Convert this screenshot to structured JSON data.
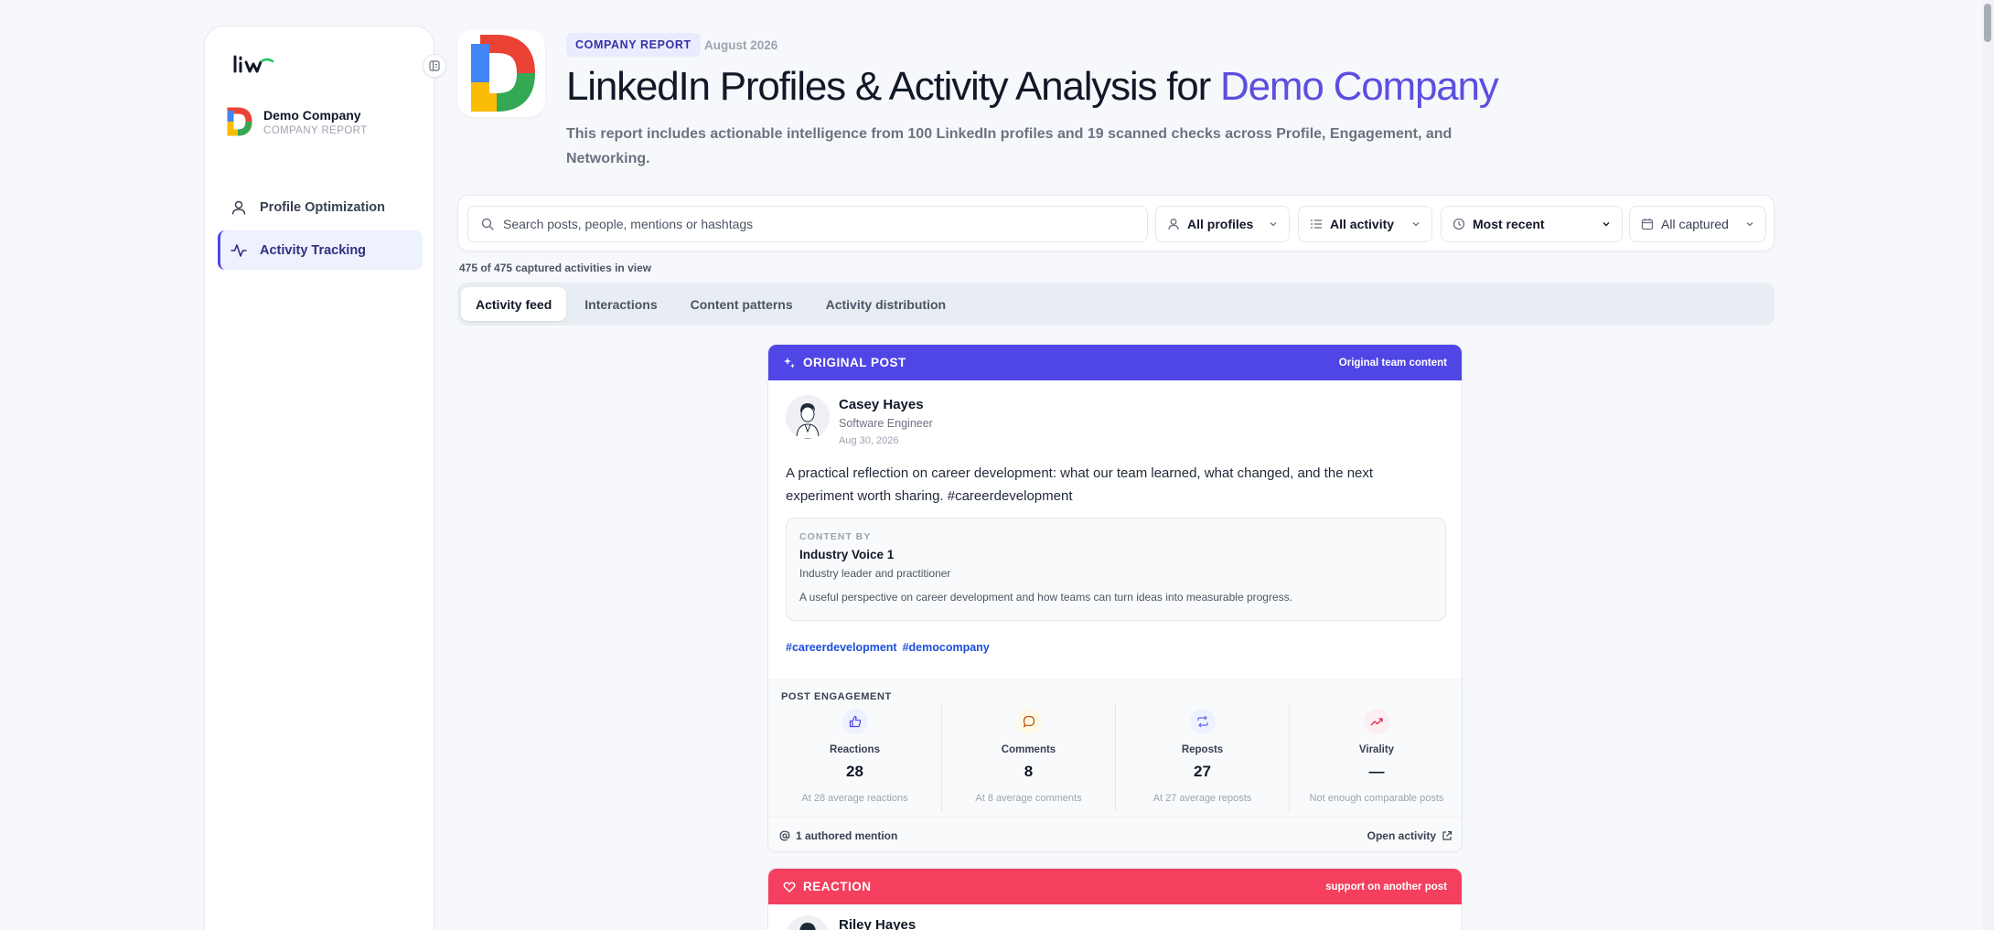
{
  "sidebar": {
    "logo": "Liw",
    "company_name": "Demo Company",
    "company_sub": "COMPANY REPORT",
    "items": [
      {
        "label": "Profile Optimization",
        "icon": "user-icon",
        "active": false
      },
      {
        "label": "Activity Tracking",
        "icon": "activity-icon",
        "active": true
      }
    ]
  },
  "header": {
    "badge": "COMPANY REPORT",
    "date": "August 2026",
    "title_main": "LinkedIn Profiles & Activity Analysis for ",
    "title_accent": "Demo Company",
    "intro": "This report includes actionable intelligence from 100 LinkedIn profiles and 19 scanned checks across Profile, Engagement, and Networking."
  },
  "filters": {
    "search_placeholder": "Search posts, people, mentions or hashtags",
    "profiles": "All profiles",
    "activity": "All activity",
    "sort": "Most recent",
    "captured": "All captured"
  },
  "count_text": "475 of 475 captured activities in view",
  "tabs": [
    {
      "label": "Activity feed",
      "active": true
    },
    {
      "label": "Interactions",
      "active": false
    },
    {
      "label": "Content patterns",
      "active": false
    },
    {
      "label": "Activity distribution",
      "active": false
    }
  ],
  "card": {
    "type": "ORIGINAL POST",
    "note": "Original team content",
    "author_name": "Casey Hayes",
    "author_role": "Software Engineer",
    "author_date": "Aug 30, 2026",
    "text": "A practical reflection on career development: what our team learned, what changed, and the next experiment worth sharing. #careerdevelopment",
    "quote": {
      "label": "CONTENT BY",
      "name": "Industry Voice 1",
      "role": "Industry leader and practitioner",
      "text": "A useful perspective on career development and how teams can turn ideas into measurable progress."
    },
    "tags": [
      "#careerdevelopment",
      "#democompany"
    ],
    "engagement_label": "POST ENGAGEMENT",
    "metrics": [
      {
        "label": "Reactions",
        "value": "28",
        "note": "At 28 average reactions",
        "icon": "thumbs-up-icon",
        "color": "#4f46e5",
        "bg": "#eef2ff"
      },
      {
        "label": "Comments",
        "value": "8",
        "note": "At 8 average comments",
        "icon": "comment-icon",
        "color": "#b45309",
        "bg": "#fef9e7"
      },
      {
        "label": "Reposts",
        "value": "27",
        "note": "At 27 average reposts",
        "icon": "repost-icon",
        "color": "#6366f1",
        "bg": "#eef2ff"
      },
      {
        "label": "Virality",
        "value": "—",
        "note": "Not enough comparable posts",
        "icon": "trend-icon",
        "color": "#e11d48",
        "bg": "#fdeef2"
      }
    ],
    "mentions": "1 authored mention",
    "open_link": "Open activity"
  },
  "card2": {
    "type": "REACTION",
    "note": "support on another post",
    "author_name": "Riley Hayes"
  }
}
